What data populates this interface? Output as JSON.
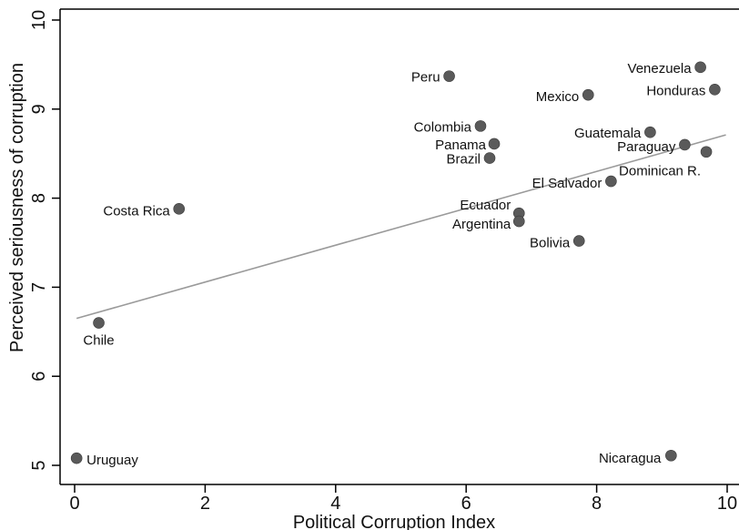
{
  "chart_data": {
    "type": "scatter",
    "xlabel": "Political Corruption Index",
    "ylabel": "Perceived seriousness of corruption",
    "xlim": [
      0,
      10
    ],
    "ylim": [
      5,
      10
    ],
    "x_ticks": [
      "0",
      "2",
      "4",
      "6",
      "8",
      "10"
    ],
    "y_ticks": [
      "5",
      "6",
      "7",
      "8",
      "9",
      "10"
    ],
    "grid": false,
    "points": [
      {
        "label": "Uruguay",
        "x": 0.03,
        "y": 5.08
      },
      {
        "label": "Chile",
        "x": 0.37,
        "y": 6.6
      },
      {
        "label": "Costa Rica",
        "x": 1.6,
        "y": 7.88
      },
      {
        "label": "Peru",
        "x": 5.74,
        "y": 9.37
      },
      {
        "label": "Colombia",
        "x": 6.22,
        "y": 8.81
      },
      {
        "label": "Panama",
        "x": 6.43,
        "y": 8.61
      },
      {
        "label": "Brazil",
        "x": 6.36,
        "y": 8.45
      },
      {
        "label": "Ecuador",
        "x": 6.81,
        "y": 7.83
      },
      {
        "label": "Argentina",
        "x": 6.81,
        "y": 7.74
      },
      {
        "label": "Mexico",
        "x": 7.87,
        "y": 9.16
      },
      {
        "label": "Bolivia",
        "x": 7.73,
        "y": 7.52
      },
      {
        "label": "El Salvador",
        "x": 8.22,
        "y": 8.19
      },
      {
        "label": "Guatemala",
        "x": 8.82,
        "y": 8.74
      },
      {
        "label": "Paraguay",
        "x": 9.35,
        "y": 8.6
      },
      {
        "label": "Dominican R.",
        "x": 9.68,
        "y": 8.52
      },
      {
        "label": "Venezuela",
        "x": 9.59,
        "y": 9.47
      },
      {
        "label": "Honduras",
        "x": 9.81,
        "y": 9.22
      },
      {
        "label": "Nicaragua",
        "x": 9.14,
        "y": 5.11
      }
    ],
    "fit_line": {
      "x": [
        0.03,
        9.98
      ],
      "y": [
        6.65,
        8.71
      ]
    }
  }
}
